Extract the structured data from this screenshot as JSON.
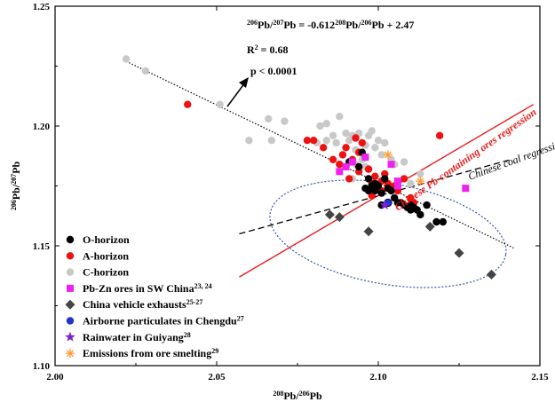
{
  "chart_data": {
    "type": "scatter",
    "xlabel": "208Pb/206Pb",
    "ylabel": "206Pb/207Pb",
    "xlim": [
      2.0,
      2.15
    ],
    "ylim": [
      1.1,
      1.25
    ],
    "xticks": [
      "2.00",
      "2.05",
      "2.10",
      "2.15"
    ],
    "yticks": [
      "1.10",
      "1.15",
      "1.20",
      "1.25"
    ],
    "annotations": {
      "equation": "206Pb/207Pb = -0.612208Pb/206Pb + 2.47",
      "r2": "R2 = 0.68",
      "p": "p < 0.0001",
      "ores_regression": "Chinese Pb-containing ores regression",
      "coal_regression": "Chinese coal regression"
    },
    "colors": {
      "o_horizon": "#000000",
      "a_horizon": "#ee1111",
      "c_horizon": "#c8c8c8",
      "pbzn": "#ee22ee",
      "vehicle": "#444444",
      "airborne": "#2233cc",
      "rainwater": "#7a22cc",
      "emissions": "#ff9933",
      "ores_line": "#e61e1e",
      "coal_line": "#000000",
      "fit_line": "#000000",
      "ellipse": "#3355aa"
    },
    "legend": [
      {
        "label": "O-horizon",
        "sup": ""
      },
      {
        "label": "A-horizon",
        "sup": ""
      },
      {
        "label": "C-horizon",
        "sup": ""
      },
      {
        "label": "Pb-Zn ores in SW China",
        "sup": "23, 24"
      },
      {
        "label": "China vehicle exhausts",
        "sup": "25-27"
      },
      {
        "label": "Airborne particulates in Chengdu",
        "sup": "27"
      },
      {
        "label": "Rainwater in Guiyang",
        "sup": "28"
      },
      {
        "label": "Emissions from ore smelting",
        "sup": "29"
      }
    ],
    "lines": {
      "fit": {
        "x": [
          2.022,
          2.142
        ],
        "y": [
          1.227,
          1.149
        ]
      },
      "ores": {
        "x": [
          2.057,
          2.148
        ],
        "y": [
          1.137,
          1.209
        ]
      },
      "coal": {
        "x": [
          2.057,
          2.141
        ],
        "y": [
          1.155,
          1.186
        ]
      }
    },
    "ellipse": {
      "cx": 2.103,
      "cy": 1.155,
      "rx": 0.037,
      "ry": 0.021,
      "angle_deg": -10
    },
    "series": [
      {
        "key": "c_horizon",
        "name": "C-horizon",
        "marker": "circle",
        "points": [
          [
            2.022,
            1.228
          ],
          [
            2.028,
            1.223
          ],
          [
            2.051,
            1.209
          ],
          [
            2.06,
            1.194
          ],
          [
            2.066,
            1.203
          ],
          [
            2.067,
            1.194
          ],
          [
            2.071,
            1.202
          ],
          [
            2.081,
            1.193
          ],
          [
            2.084,
            1.194
          ],
          [
            2.082,
            1.2
          ],
          [
            2.084,
            1.201
          ],
          [
            2.086,
            1.196
          ],
          [
            2.087,
            1.193
          ],
          [
            2.088,
            1.204
          ],
          [
            2.09,
            1.197
          ],
          [
            2.091,
            1.194
          ],
          [
            2.092,
            1.196
          ],
          [
            2.093,
            1.19
          ],
          [
            2.094,
            1.197
          ],
          [
            2.095,
            1.186
          ],
          [
            2.096,
            1.192
          ],
          [
            2.097,
            1.196
          ],
          [
            2.098,
            1.198
          ],
          [
            2.099,
            1.191
          ],
          [
            2.1,
            1.194
          ],
          [
            2.101,
            1.188
          ],
          [
            2.102,
            1.193
          ],
          [
            2.104,
            1.186
          ],
          [
            2.105,
            1.184
          ],
          [
            2.093,
            1.184
          ],
          [
            2.096,
            1.183
          ],
          [
            2.108,
            1.185
          ],
          [
            2.11,
            1.176
          ],
          [
            2.113,
            1.18
          ],
          [
            2.092,
            1.178
          ]
        ]
      },
      {
        "key": "a_horizon",
        "name": "A-horizon",
        "marker": "circle",
        "points": [
          [
            2.041,
            1.209
          ],
          [
            2.078,
            1.194
          ],
          [
            2.08,
            1.194
          ],
          [
            2.083,
            1.191
          ],
          [
            2.086,
            1.186
          ],
          [
            2.088,
            1.184
          ],
          [
            2.089,
            1.188
          ],
          [
            2.09,
            1.183
          ],
          [
            2.091,
            1.178
          ],
          [
            2.092,
            1.186
          ],
          [
            2.093,
            1.195
          ],
          [
            2.094,
            1.189
          ],
          [
            2.095,
            1.193
          ],
          [
            2.096,
            1.187
          ],
          [
            2.097,
            1.182
          ],
          [
            2.097,
            1.178
          ],
          [
            2.098,
            1.176
          ],
          [
            2.099,
            1.179
          ],
          [
            2.1,
            1.174
          ],
          [
            2.101,
            1.177
          ],
          [
            2.102,
            1.18
          ],
          [
            2.103,
            1.176
          ],
          [
            2.104,
            1.174
          ],
          [
            2.105,
            1.175
          ],
          [
            2.106,
            1.173
          ],
          [
            2.108,
            1.178
          ],
          [
            2.11,
            1.17
          ],
          [
            2.111,
            1.168
          ],
          [
            2.119,
            1.196
          ],
          [
            2.09,
            1.191
          ],
          [
            2.098,
            1.171
          ],
          [
            2.101,
            1.173
          ],
          [
            2.094,
            1.181
          ]
        ]
      },
      {
        "key": "o_horizon",
        "name": "O-horizon",
        "marker": "circle",
        "points": [
          [
            2.091,
            1.185
          ],
          [
            2.094,
            1.183
          ],
          [
            2.095,
            1.189
          ],
          [
            2.096,
            1.174
          ],
          [
            2.097,
            1.178
          ],
          [
            2.098,
            1.175
          ],
          [
            2.099,
            1.173
          ],
          [
            2.1,
            1.175
          ],
          [
            2.101,
            1.172
          ],
          [
            2.102,
            1.178
          ],
          [
            2.103,
            1.174
          ],
          [
            2.104,
            1.173
          ],
          [
            2.105,
            1.17
          ],
          [
            2.106,
            1.175
          ],
          [
            2.107,
            1.168
          ],
          [
            2.108,
            1.167
          ],
          [
            2.109,
            1.166
          ],
          [
            2.11,
            1.165
          ],
          [
            2.111,
            1.166
          ],
          [
            2.112,
            1.165
          ],
          [
            2.113,
            1.163
          ],
          [
            2.115,
            1.167
          ],
          [
            2.118,
            1.16
          ],
          [
            2.12,
            1.16
          ],
          [
            2.097,
            1.173
          ],
          [
            2.099,
            1.176
          ],
          [
            2.106,
            1.168
          ],
          [
            2.101,
            1.167
          ],
          [
            2.11,
            1.167
          ]
        ]
      },
      {
        "key": "pbzn",
        "name": "Pb-Zn ores in SW China",
        "marker": "square",
        "points": [
          [
            2.088,
            1.181
          ],
          [
            2.09,
            1.183
          ],
          [
            2.092,
            1.185
          ],
          [
            2.096,
            1.187
          ],
          [
            2.106,
            1.177
          ],
          [
            2.106,
            1.175
          ],
          [
            2.104,
            1.184
          ],
          [
            2.127,
            1.174
          ]
        ]
      },
      {
        "key": "vehicle",
        "name": "China vehicle exhausts",
        "marker": "diamond",
        "points": [
          [
            2.085,
            1.163
          ],
          [
            2.088,
            1.162
          ],
          [
            2.097,
            1.156
          ],
          [
            2.116,
            1.158
          ],
          [
            2.125,
            1.147
          ],
          [
            2.135,
            1.138
          ]
        ]
      },
      {
        "key": "airborne",
        "name": "Airborne particulates in Chengdu",
        "marker": "circle",
        "points": [
          [
            2.103,
            1.168
          ]
        ]
      },
      {
        "key": "rainwater",
        "name": "Rainwater in Guiyang",
        "marker": "star",
        "points": [
          [
            2.102,
            1.167
          ]
        ]
      },
      {
        "key": "emissions",
        "name": "Emissions from ore smelting",
        "marker": "asterisk",
        "points": [
          [
            2.103,
            1.188
          ],
          [
            2.113,
            1.177
          ]
        ]
      }
    ]
  }
}
